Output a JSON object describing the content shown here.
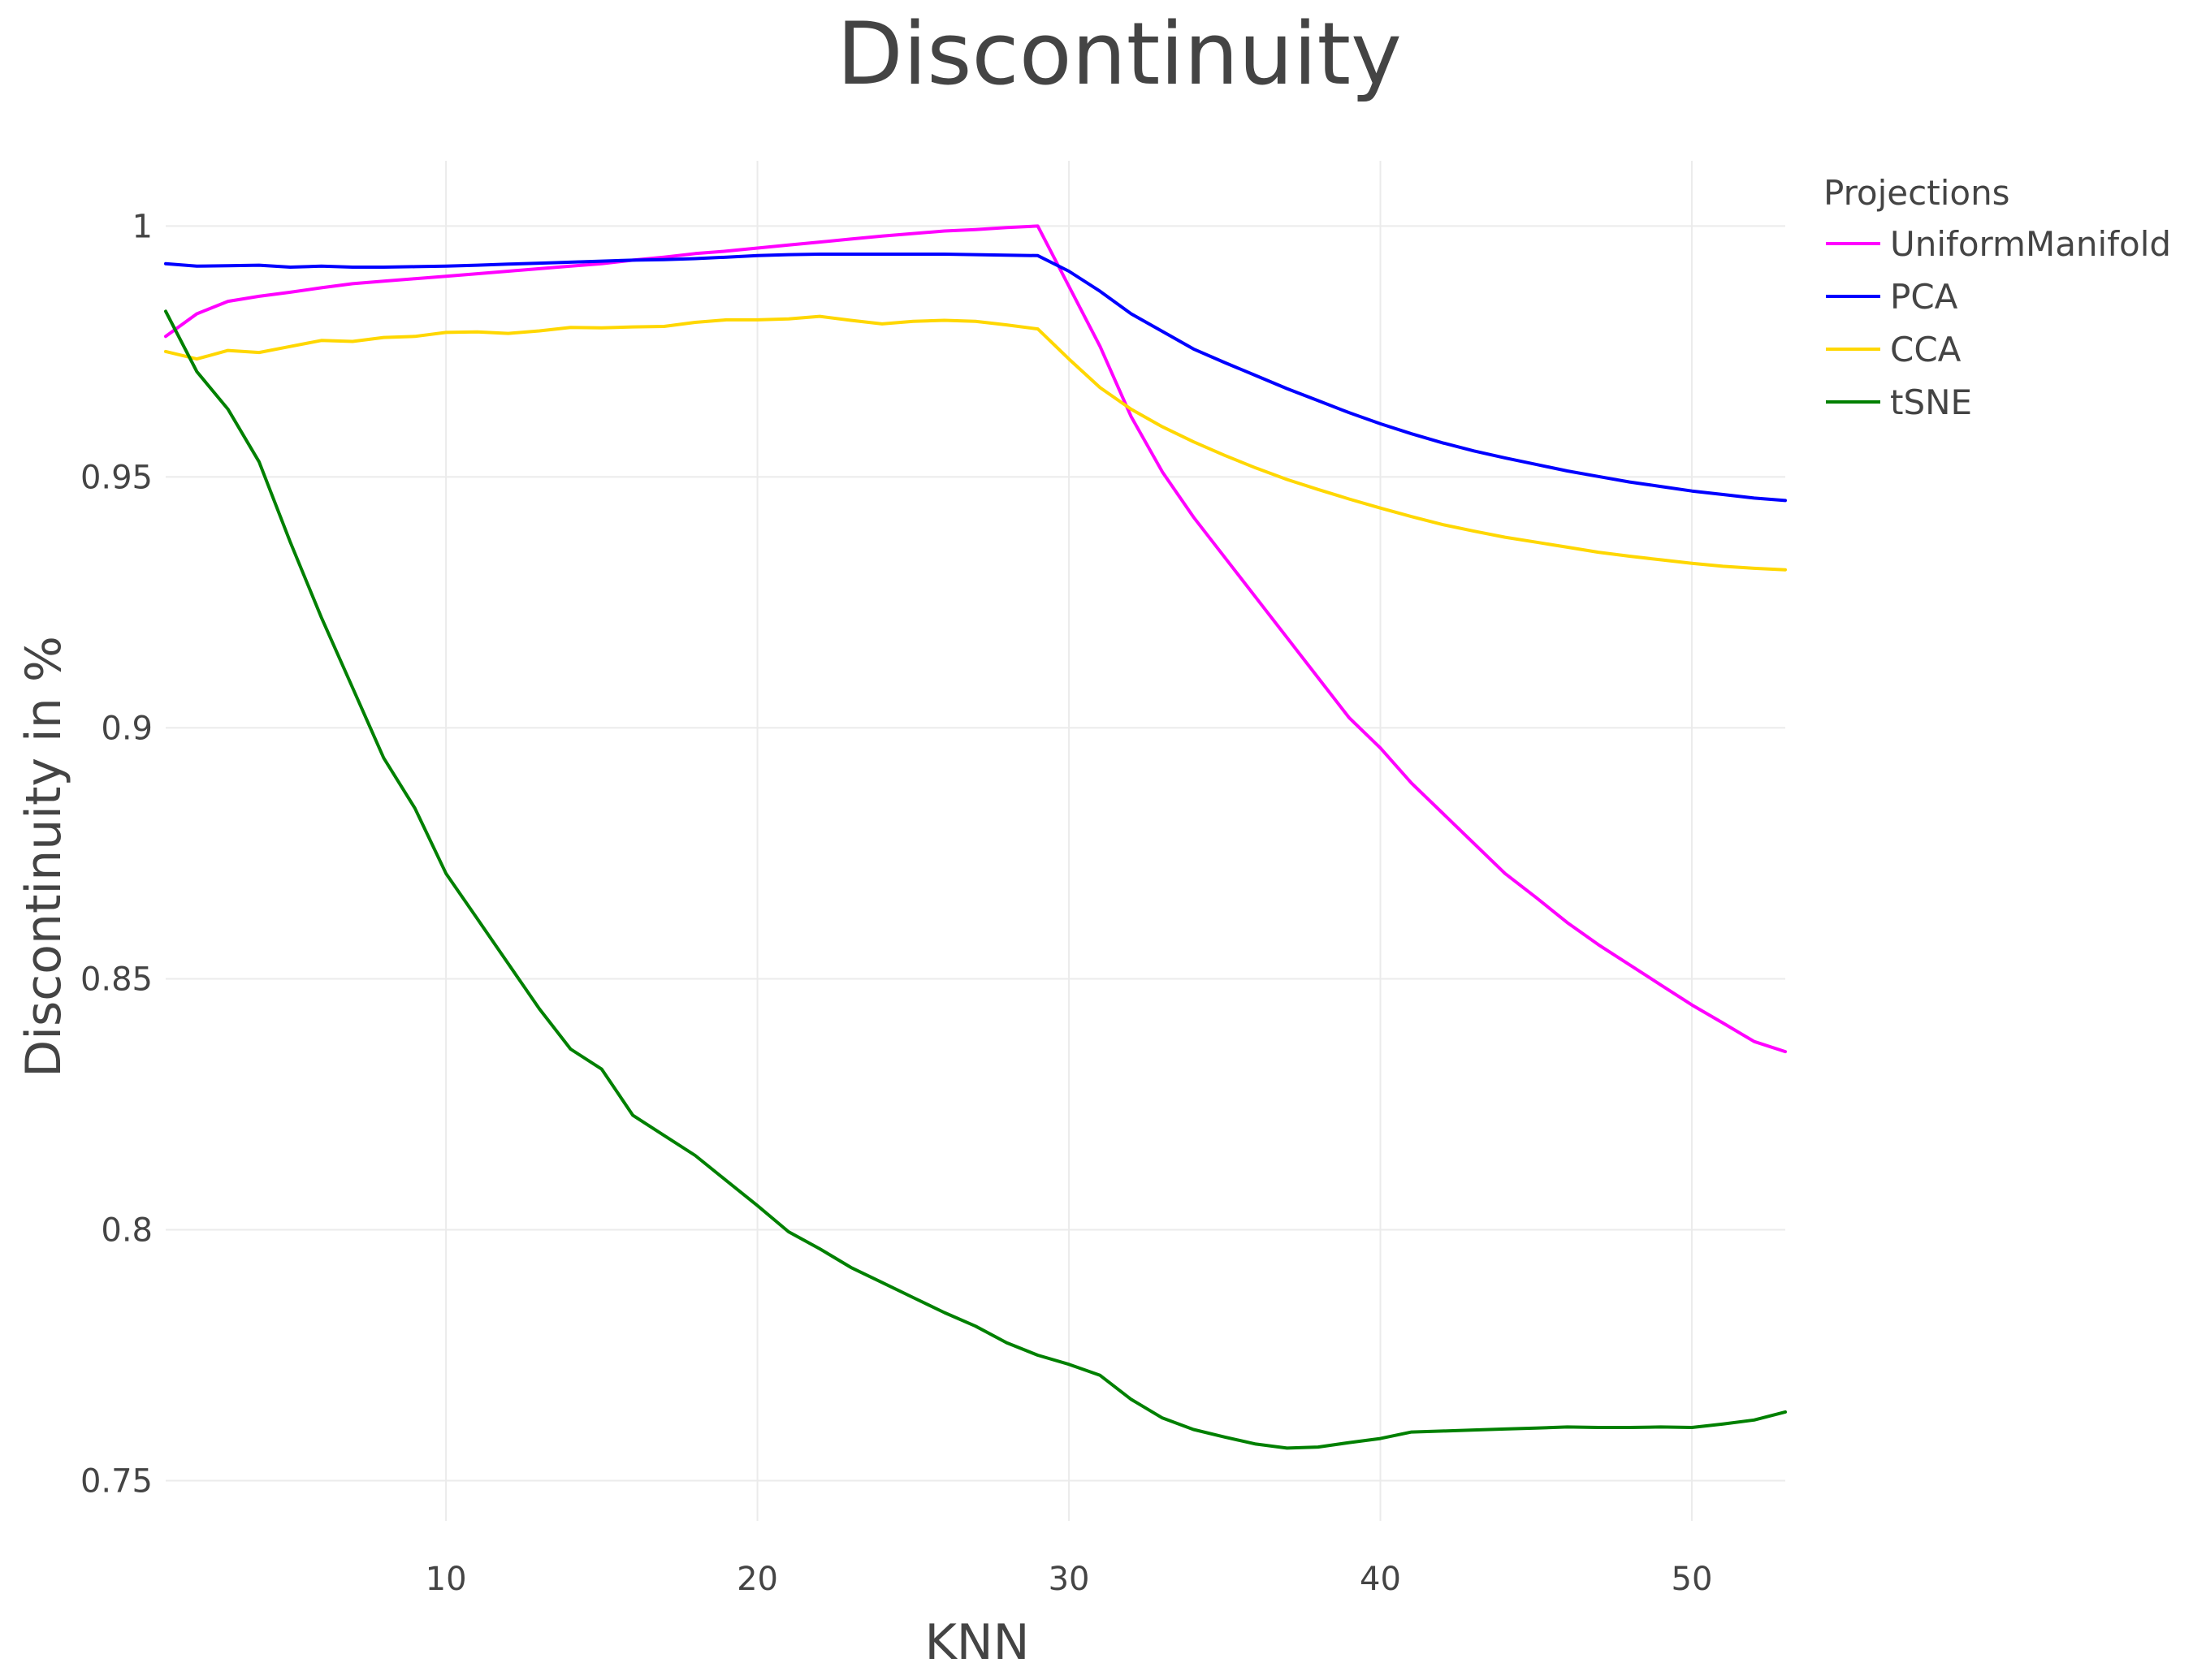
{
  "chart_data": {
    "type": "line",
    "title": "Discontinuity",
    "xlabel": "KNN",
    "ylabel": "Discontinuity in %",
    "xlim": [
      1,
      53
    ],
    "ylim": [
      0.742,
      1.013
    ],
    "grid": true,
    "xticks": [
      10,
      20,
      30,
      40,
      50
    ],
    "xtick_labels": [
      "10",
      "20",
      "30",
      "40",
      "50"
    ],
    "yticks": [
      0.75,
      0.8,
      0.85,
      0.9,
      0.95,
      1
    ],
    "ytick_labels": [
      "0.75",
      "0.8",
      "0.85",
      "0.9",
      "0.95",
      "1"
    ],
    "legend_title": "Projections",
    "legend_position": "top-right",
    "series": [
      {
        "name": "UniformManifold",
        "color": "#ff00ff",
        "x": [
          1,
          2,
          3,
          4,
          5,
          6,
          7,
          8,
          9,
          10,
          11,
          12,
          13,
          14,
          15,
          16,
          17,
          18,
          19,
          20,
          21,
          22,
          23,
          24,
          25,
          26,
          27,
          28,
          29,
          30,
          31,
          32,
          33,
          34,
          35,
          36,
          37,
          38,
          39,
          40,
          41,
          42,
          43,
          44,
          45,
          46,
          47,
          48,
          49,
          50,
          51,
          52,
          53
        ],
        "values": [
          0.978,
          0.9825,
          0.985,
          0.986,
          0.9868,
          0.9877,
          0.9885,
          0.989,
          0.9895,
          0.99,
          0.9905,
          0.991,
          0.9915,
          0.992,
          0.9925,
          0.9932,
          0.9938,
          0.9945,
          0.995,
          0.9956,
          0.9962,
          0.9968,
          0.9974,
          0.998,
          0.9985,
          0.999,
          0.9993,
          0.9997,
          1.0,
          0.988,
          0.976,
          0.962,
          0.951,
          0.942,
          0.934,
          0.926,
          0.918,
          0.91,
          0.902,
          0.896,
          0.889,
          0.883,
          0.877,
          0.871,
          0.8662,
          0.8612,
          0.8568,
          0.8528,
          0.8488,
          0.8448,
          0.8412,
          0.8375,
          0.8355
        ]
      },
      {
        "name": "PCA",
        "color": "#0000ff",
        "x": [
          1,
          2,
          3,
          4,
          5,
          6,
          7,
          8,
          9,
          10,
          11,
          12,
          13,
          14,
          15,
          16,
          17,
          18,
          19,
          20,
          21,
          22,
          23,
          24,
          25,
          26,
          27,
          28,
          29,
          30,
          31,
          32,
          33,
          34,
          35,
          36,
          37,
          38,
          39,
          40,
          41,
          42,
          43,
          44,
          45,
          46,
          47,
          48,
          49,
          50,
          51,
          52,
          53
        ],
        "values": [
          0.9925,
          0.992,
          0.9921,
          0.9922,
          0.9918,
          0.992,
          0.9918,
          0.9918,
          0.9919,
          0.992,
          0.9922,
          0.9924,
          0.9926,
          0.9928,
          0.993,
          0.9932,
          0.9933,
          0.9935,
          0.9938,
          0.9941,
          0.9943,
          0.9944,
          0.9944,
          0.9944,
          0.9944,
          0.9944,
          0.9943,
          0.9942,
          0.9941,
          0.991,
          0.987,
          0.9825,
          0.979,
          0.9755,
          0.9728,
          0.9702,
          0.9676,
          0.9652,
          0.9628,
          0.9606,
          0.9586,
          0.9568,
          0.9552,
          0.9538,
          0.9525,
          0.9512,
          0.9501,
          0.949,
          0.9481,
          0.9472,
          0.9465,
          0.9458,
          0.9453
        ]
      },
      {
        "name": "CCA",
        "color": "#ffd700",
        "x": [
          1,
          2,
          3,
          4,
          5,
          6,
          7,
          8,
          9,
          10,
          11,
          12,
          13,
          14,
          15,
          16,
          17,
          18,
          19,
          20,
          21,
          22,
          23,
          24,
          25,
          26,
          27,
          28,
          29,
          30,
          31,
          32,
          33,
          34,
          35,
          36,
          37,
          38,
          39,
          40,
          41,
          42,
          43,
          44,
          45,
          46,
          47,
          48,
          49,
          50,
          51,
          52,
          53
        ],
        "values": [
          0.975,
          0.9735,
          0.9752,
          0.9748,
          0.976,
          0.9772,
          0.977,
          0.9778,
          0.978,
          0.9788,
          0.9789,
          0.9786,
          0.9791,
          0.9798,
          0.9797,
          0.9799,
          0.98,
          0.9808,
          0.9813,
          0.9813,
          0.9815,
          0.982,
          0.9812,
          0.9805,
          0.981,
          0.9812,
          0.981,
          0.9803,
          0.9795,
          0.9735,
          0.9678,
          0.9635,
          0.96,
          0.957,
          0.9543,
          0.9518,
          0.9495,
          0.9475,
          0.9456,
          0.9438,
          0.9421,
          0.9405,
          0.9392,
          0.938,
          0.937,
          0.936,
          0.935,
          0.9342,
          0.9335,
          0.9328,
          0.9322,
          0.9318,
          0.9315
        ]
      },
      {
        "name": "tSNE",
        "color": "#008000",
        "x": [
          1,
          2,
          3,
          4,
          5,
          6,
          7,
          8,
          9,
          10,
          11,
          12,
          13,
          14,
          15,
          16,
          17,
          18,
          19,
          20,
          21,
          22,
          23,
          24,
          25,
          26,
          27,
          28,
          29,
          30,
          31,
          32,
          33,
          34,
          35,
          36,
          37,
          38,
          39,
          40,
          41,
          42,
          43,
          44,
          45,
          46,
          47,
          48,
          49,
          50,
          51,
          52,
          53
        ],
        "values": [
          0.983,
          0.971,
          0.9635,
          0.953,
          0.937,
          0.922,
          0.908,
          0.894,
          0.884,
          0.871,
          0.862,
          0.853,
          0.844,
          0.836,
          0.832,
          0.8228,
          0.8188,
          0.8148,
          0.8098,
          0.8048,
          0.7996,
          0.7962,
          0.7925,
          0.7895,
          0.7865,
          0.7835,
          0.7808,
          0.7775,
          0.775,
          0.7732,
          0.771,
          0.7662,
          0.7625,
          0.7602,
          0.7587,
          0.7573,
          0.7565,
          0.7567,
          0.7576,
          0.7584,
          0.7597,
          0.7599,
          0.7601,
          0.7603,
          0.7605,
          0.7607,
          0.7606,
          0.7606,
          0.7607,
          0.7606,
          0.7613,
          0.7621,
          0.7637
        ]
      }
    ]
  }
}
